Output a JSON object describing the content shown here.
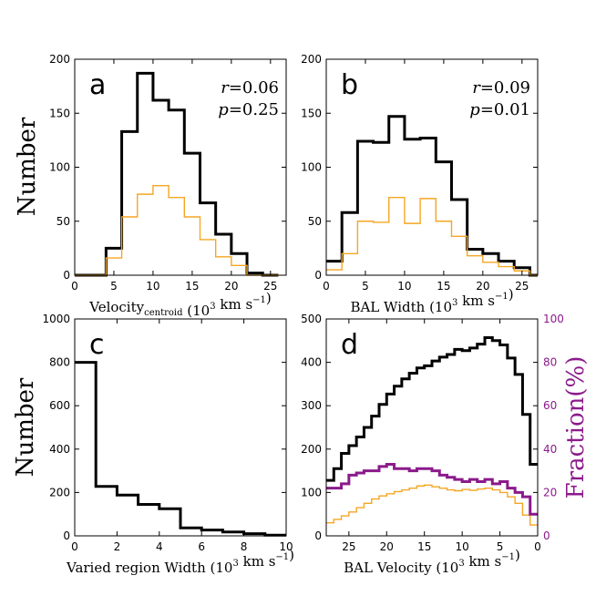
{
  "figure": {
    "ylabel_top": "Number",
    "ylabel_bottom": "Number",
    "ylabel_right": "Fraction(%)"
  },
  "chart_data": [
    {
      "type": "histogram",
      "id": "a",
      "panel_label": "a",
      "xlabel_main": "Velocity",
      "xlabel_sub": "centroid",
      "xlabel_units": "(10",
      "xlabel_exp": "3",
      "xlabel_tail": " km s",
      "xlabel_exp2": "−1",
      "xlabel_close": ")",
      "xlim": [
        0,
        27
      ],
      "ylim": [
        0,
        200
      ],
      "xticks": [
        0,
        5,
        10,
        15,
        20,
        25
      ],
      "yticks": [
        0,
        50,
        100,
        150,
        200
      ],
      "stats": [
        {
          "var": "r",
          "value": "=0.06"
        },
        {
          "var": "p",
          "value": "=0.25"
        }
      ],
      "series": [
        {
          "name": "all",
          "color": "#000000",
          "width": 3,
          "edges": [
            0,
            2,
            4,
            6,
            8,
            10,
            12,
            14,
            16,
            18,
            20,
            22,
            24,
            26
          ],
          "values": [
            0,
            0,
            25,
            133,
            187,
            162,
            153,
            113,
            67,
            38,
            20,
            2,
            0
          ]
        },
        {
          "name": "subset",
          "color": "#f5a623",
          "width": 1.4,
          "edges": [
            0,
            2,
            4,
            6,
            8,
            10,
            12,
            14,
            16,
            18,
            20,
            22,
            24,
            26
          ],
          "values": [
            0,
            0,
            16,
            54,
            75,
            83,
            72,
            54,
            33,
            17,
            9,
            0,
            0
          ]
        }
      ]
    },
    {
      "type": "histogram",
      "id": "b",
      "panel_label": "b",
      "xlabel_main": "BAL Width",
      "xlabel_sub": "",
      "xlabel_units": "(10",
      "xlabel_exp": "3",
      "xlabel_tail": " km s",
      "xlabel_exp2": "−1",
      "xlabel_close": ")",
      "xlim": [
        0,
        27
      ],
      "ylim": [
        0,
        200
      ],
      "xticks": [
        0,
        5,
        10,
        15,
        20,
        25
      ],
      "yticks": [
        0,
        50,
        100,
        150,
        200
      ],
      "stats": [
        {
          "var": "r",
          "value": "=0.09"
        },
        {
          "var": "p",
          "value": "=0.01"
        }
      ],
      "series": [
        {
          "name": "all",
          "color": "#000000",
          "width": 3,
          "edges": [
            0,
            2,
            4,
            6,
            8,
            10,
            12,
            14,
            16,
            18,
            20,
            22,
            24,
            26,
            27
          ],
          "values": [
            13,
            58,
            124,
            123,
            147,
            126,
            127,
            105,
            70,
            24,
            20,
            13,
            7,
            0
          ]
        },
        {
          "name": "subset",
          "color": "#f5a623",
          "width": 1.4,
          "edges": [
            0,
            2,
            4,
            6,
            8,
            10,
            12,
            14,
            16,
            18,
            20,
            22,
            24,
            26,
            27
          ],
          "values": [
            5,
            20,
            50,
            49,
            72,
            48,
            71,
            50,
            36,
            18,
            12,
            8,
            4,
            0
          ]
        }
      ]
    },
    {
      "type": "histogram",
      "id": "c",
      "panel_label": "c",
      "xlabel_main": "Varied region Width",
      "xlabel_sub": "",
      "xlabel_units": "(10",
      "xlabel_exp": "3",
      "xlabel_tail": " km s",
      "xlabel_exp2": "−1",
      "xlabel_close": ")",
      "xlim": [
        0,
        10
      ],
      "ylim": [
        0,
        1000
      ],
      "xticks": [
        0,
        2,
        4,
        6,
        8,
        10
      ],
      "yticks": [
        0,
        200,
        400,
        600,
        800,
        1000
      ],
      "stats": [],
      "series": [
        {
          "name": "all",
          "color": "#000000",
          "width": 3,
          "edges": [
            0,
            1,
            2,
            3,
            4,
            5,
            6,
            7,
            8,
            9,
            10
          ],
          "values": [
            800,
            228,
            188,
            145,
            125,
            37,
            27,
            18,
            10,
            3
          ]
        }
      ]
    },
    {
      "type": "histogram",
      "id": "d",
      "panel_label": "d",
      "xlabel_main": "BAL Velocity",
      "xlabel_sub": "",
      "xlabel_units": "(10",
      "xlabel_exp": "3",
      "xlabel_tail": " km s",
      "xlabel_exp2": "−1",
      "xlabel_close": ")",
      "xlim": [
        28,
        0
      ],
      "ylim": [
        0,
        500
      ],
      "y2lim": [
        0,
        100
      ],
      "xticks": [
        25,
        20,
        15,
        10,
        5,
        0
      ],
      "yticks": [
        0,
        100,
        200,
        300,
        400,
        500
      ],
      "y2ticks": [
        0,
        20,
        40,
        60,
        80,
        100
      ],
      "stats": [],
      "series": [
        {
          "name": "all",
          "color": "#000000",
          "width": 3,
          "edges": [
            28,
            27,
            26,
            25,
            24,
            23,
            22,
            21,
            20,
            19,
            18,
            17,
            16,
            15,
            14,
            13,
            12,
            11,
            10,
            9,
            8,
            7,
            6,
            5,
            4,
            3,
            2,
            1,
            0
          ],
          "values": [
            128,
            155,
            190,
            208,
            228,
            250,
            276,
            303,
            327,
            345,
            362,
            375,
            387,
            392,
            403,
            412,
            418,
            430,
            427,
            433,
            442,
            457,
            450,
            440,
            410,
            372,
            280,
            165
          ]
        },
        {
          "name": "subset",
          "color": "#f5a623",
          "width": 1.4,
          "edges": [
            28,
            27,
            26,
            25,
            24,
            23,
            22,
            21,
            20,
            19,
            18,
            17,
            16,
            15,
            14,
            13,
            12,
            11,
            10,
            9,
            8,
            7,
            6,
            5,
            4,
            3,
            2,
            1,
            0
          ],
          "values": [
            30,
            38,
            46,
            55,
            65,
            75,
            85,
            92,
            97,
            102,
            106,
            110,
            115,
            117,
            113,
            110,
            106,
            104,
            107,
            105,
            108,
            110,
            106,
            100,
            90,
            75,
            48,
            25
          ]
        },
        {
          "name": "fraction",
          "color": "#8b1a8b",
          "width": 3,
          "axis": "right",
          "edges": [
            28,
            27,
            26,
            25,
            24,
            23,
            22,
            21,
            20,
            19,
            18,
            17,
            16,
            15,
            14,
            13,
            12,
            11,
            10,
            9,
            8,
            7,
            6,
            5,
            4,
            3,
            2,
            1,
            0
          ],
          "values": [
            22,
            22,
            24,
            28,
            29,
            30,
            30,
            32,
            33,
            31,
            31,
            30,
            31,
            31,
            30,
            28,
            27,
            26,
            25,
            26,
            25,
            26,
            24,
            25,
            22,
            20,
            18,
            10
          ]
        }
      ]
    }
  ]
}
